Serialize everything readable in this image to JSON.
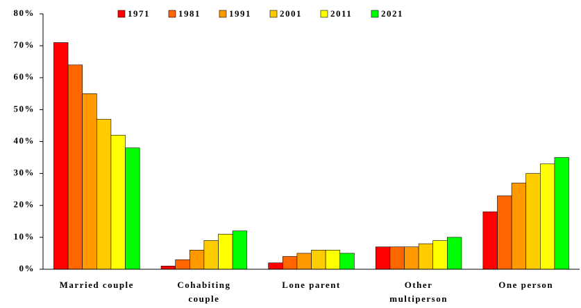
{
  "chart_data": {
    "type": "bar",
    "categories": [
      "Married couple",
      "Cohabiting\ncouple",
      "Lone parent",
      "Other\nmultiperson",
      "One person"
    ],
    "series": [
      {
        "name": "1971",
        "color": "#ff0000",
        "values": [
          71,
          1,
          2,
          7,
          18
        ]
      },
      {
        "name": "1981",
        "color": "#ff6600",
        "values": [
          64,
          3,
          4,
          7,
          23
        ]
      },
      {
        "name": "1991",
        "color": "#ff9900",
        "values": [
          55,
          6,
          5,
          7,
          27
        ]
      },
      {
        "name": "2001",
        "color": "#ffcc00",
        "values": [
          47,
          9,
          6,
          8,
          30
        ]
      },
      {
        "name": "2011",
        "color": "#ffff00",
        "values": [
          42,
          11,
          6,
          9,
          33
        ]
      },
      {
        "name": "2021",
        "color": "#00ff00",
        "values": [
          38,
          12,
          5,
          10,
          35
        ]
      }
    ],
    "ylim": [
      0,
      80
    ],
    "yticks": [
      {
        "value": 0,
        "label": "0%"
      },
      {
        "value": 10,
        "label": "10%"
      },
      {
        "value": 20,
        "label": "20%"
      },
      {
        "value": 30,
        "label": "30%"
      },
      {
        "value": 40,
        "label": "40%"
      },
      {
        "value": 50,
        "label": "50%"
      },
      {
        "value": 60,
        "label": "60%"
      },
      {
        "value": 70,
        "label": "70%"
      },
      {
        "value": 80,
        "label": "80%"
      }
    ],
    "legend": "top"
  }
}
